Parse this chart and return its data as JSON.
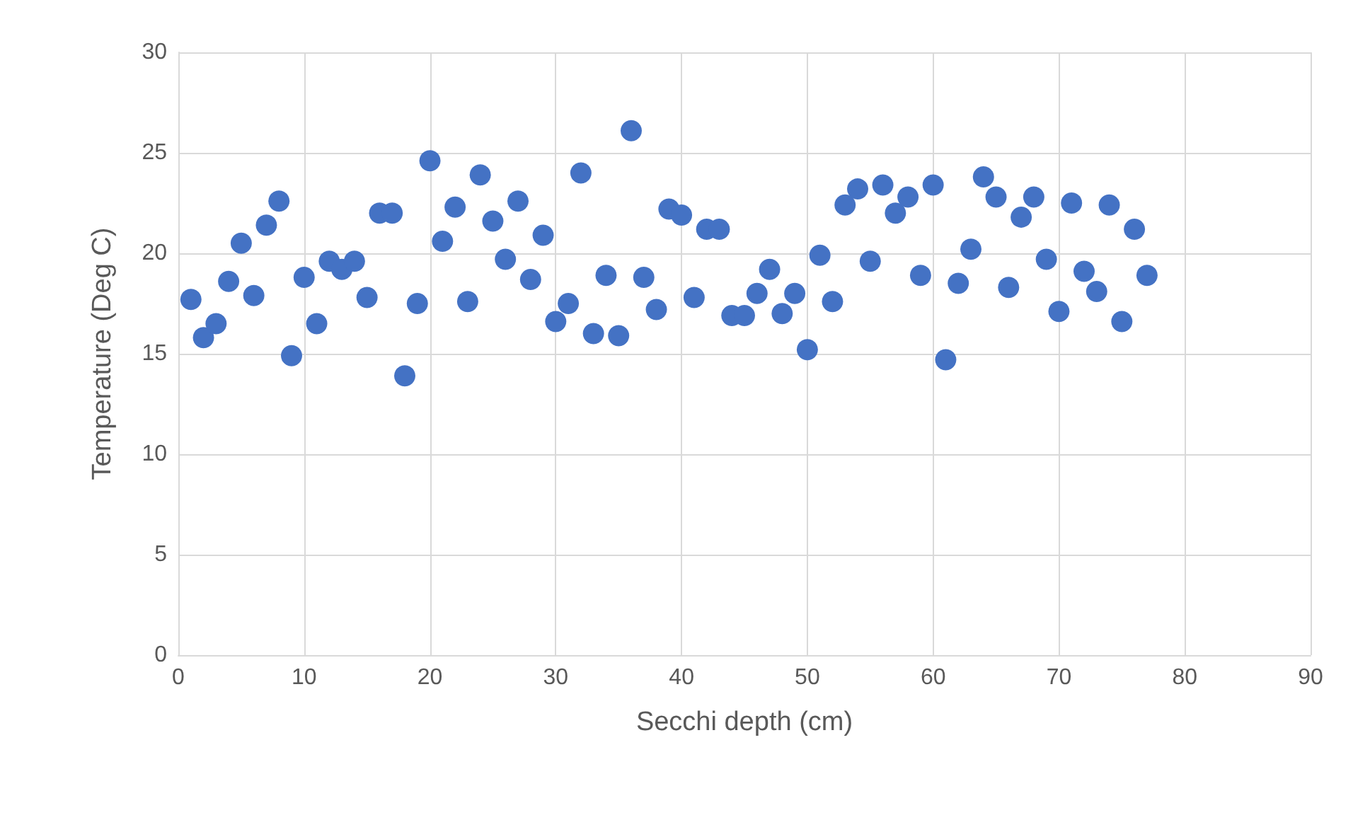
{
  "chart_data": {
    "type": "scatter",
    "xlabel": "Secchi depth (cm)",
    "ylabel": "Temperature (Deg C)",
    "x": [
      1,
      2,
      3,
      4,
      5,
      6,
      7,
      8,
      9,
      10,
      11,
      12,
      13,
      14,
      15,
      16,
      17,
      18,
      19,
      20,
      21,
      22,
      23,
      24,
      25,
      26,
      27,
      28,
      29,
      30,
      31,
      32,
      33,
      34,
      35,
      36,
      37,
      38,
      39,
      40,
      41,
      42,
      43,
      44,
      45,
      46,
      47,
      48,
      49,
      50,
      51,
      52,
      53,
      54,
      55,
      56,
      57,
      58,
      59,
      60,
      61,
      62,
      63,
      64,
      65,
      66,
      67,
      68,
      69,
      70,
      71,
      72,
      73,
      74,
      75,
      76,
      77
    ],
    "series": [
      {
        "color": "#4472c4",
        "values": [
          17.7,
          15.8,
          16.5,
          18.6,
          20.5,
          17.9,
          21.4,
          22.6,
          14.9,
          18.8,
          16.5,
          19.6,
          19.2,
          19.6,
          17.8,
          22.0,
          22.0,
          13.9,
          17.5,
          24.6,
          20.6,
          22.3,
          17.6,
          23.9,
          21.6,
          19.7,
          22.6,
          18.7,
          20.9,
          16.6,
          17.5,
          24.0,
          16.0,
          18.9,
          15.9,
          26.1,
          18.8,
          17.2,
          22.2,
          21.9,
          17.8,
          21.2,
          21.2,
          16.9,
          16.9,
          18.0,
          19.2,
          17.0,
          18.0,
          15.2,
          19.9,
          17.6,
          22.4,
          23.2,
          19.6,
          23.4,
          22.0,
          22.8,
          18.9,
          23.4,
          14.7,
          18.5,
          20.2,
          23.8,
          22.8,
          18.3,
          21.8,
          22.8,
          19.7,
          17.1,
          22.5,
          19.1,
          18.1,
          22.4,
          16.6,
          21.2,
          18.9
        ]
      }
    ],
    "xlim": [
      0,
      90
    ],
    "xticks": [
      0,
      10,
      20,
      30,
      40,
      50,
      60,
      70,
      80,
      90
    ],
    "ylim": [
      0,
      30
    ],
    "yticks": [
      0,
      5,
      10,
      15,
      20,
      25,
      30
    ],
    "grid": true,
    "marker": "circle"
  }
}
